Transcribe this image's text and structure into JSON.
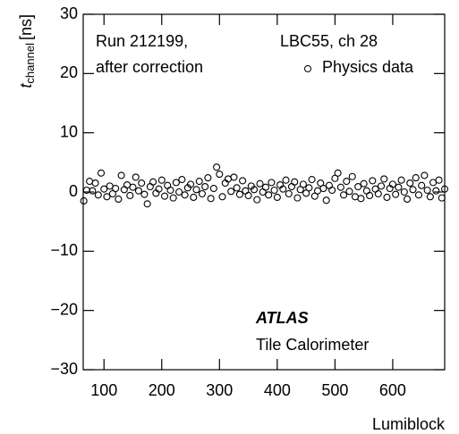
{
  "chart_data": {
    "type": "scatter",
    "annotations": [
      "Run 212199,",
      "after correction",
      "LBC55, ch 28"
    ],
    "experiment": "ATLAS",
    "subtitle": "Tile Calorimeter",
    "xlabel": "Lumiblock",
    "ylabel": {
      "symbol": "t",
      "subscript": "channel",
      "unit": "[ns]"
    },
    "xlim": [
      64,
      690
    ],
    "ylim": [
      -30,
      30
    ],
    "xticks": [
      100,
      200,
      300,
      400,
      500,
      600
    ],
    "yticks": [
      {
        "value": -30,
        "label": "−30"
      },
      {
        "value": -20,
        "label": "−20"
      },
      {
        "value": -10,
        "label": "−10"
      },
      0,
      10,
      20,
      30
    ],
    "series": [
      {
        "name": "Physics data",
        "color": "#000000",
        "x": [
          65,
          70,
          75,
          80,
          85,
          90,
          95,
          100,
          105,
          110,
          115,
          120,
          125,
          130,
          135,
          140,
          145,
          150,
          155,
          160,
          165,
          170,
          175,
          180,
          185,
          190,
          195,
          200,
          205,
          210,
          215,
          220,
          225,
          230,
          235,
          240,
          245,
          250,
          255,
          260,
          265,
          270,
          275,
          280,
          285,
          290,
          295,
          300,
          305,
          310,
          315,
          320,
          325,
          330,
          335,
          340,
          345,
          350,
          355,
          360,
          365,
          370,
          375,
          380,
          385,
          390,
          395,
          400,
          405,
          410,
          415,
          420,
          425,
          430,
          435,
          440,
          445,
          450,
          455,
          460,
          465,
          470,
          475,
          480,
          485,
          490,
          495,
          500,
          505,
          510,
          515,
          520,
          525,
          530,
          535,
          540,
          545,
          550,
          555,
          560,
          565,
          570,
          575,
          580,
          585,
          590,
          595,
          600,
          605,
          610,
          615,
          620,
          625,
          630,
          635,
          640,
          645,
          650,
          655,
          660,
          665,
          670,
          675,
          680,
          685,
          690
        ],
        "values": [
          -1.5,
          0.3,
          1.8,
          0.2,
          1.5,
          -0.5,
          3.2,
          0.5,
          -0.8,
          1.0,
          -0.3,
          0.6,
          -1.2,
          2.8,
          0.4,
          1.2,
          -0.6,
          0.8,
          2.5,
          0.2,
          1.5,
          -0.4,
          -2.0,
          0.9,
          1.7,
          -0.2,
          0.5,
          2.0,
          -0.7,
          1.1,
          0.3,
          -1.0,
          1.6,
          0.0,
          2.1,
          -0.5,
          0.7,
          1.3,
          -0.9,
          0.4,
          1.8,
          -0.3,
          0.9,
          2.4,
          -1.1,
          0.6,
          4.2,
          3.0,
          -0.8,
          1.5,
          2.2,
          0.1,
          2.5,
          0.7,
          -0.4,
          1.9,
          0.2,
          -0.6,
          1.0,
          0.4,
          -1.3,
          1.4,
          0.0,
          0.8,
          -0.5,
          1.6,
          0.3,
          -0.9,
          1.2,
          0.5,
          2.0,
          -0.3,
          0.9,
          1.7,
          -1.0,
          0.4,
          1.3,
          -0.2,
          0.7,
          2.1,
          -0.7,
          0.2,
          1.5,
          0.6,
          -1.4,
          1.1,
          0.3,
          2.3,
          3.2,
          0.8,
          -0.5,
          1.8,
          0.1,
          2.6,
          -0.8,
          0.9,
          -1.1,
          1.4,
          0.2,
          -0.6,
          1.9,
          0.5,
          -0.3,
          1.0,
          2.2,
          -0.9,
          0.6,
          1.3,
          -0.4,
          0.8,
          2.0,
          0.0,
          -1.2,
          1.5,
          0.4,
          2.4,
          -0.5,
          1.1,
          2.8,
          0.3,
          -0.8,
          1.6,
          0.2,
          2.0,
          -1.0,
          0.5
        ]
      }
    ]
  }
}
